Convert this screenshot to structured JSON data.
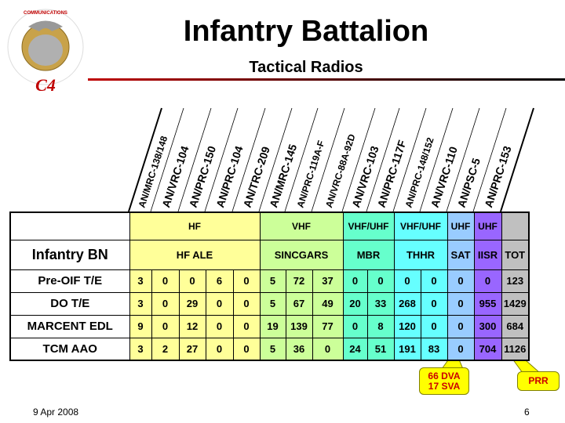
{
  "title": "Infantry Battalion",
  "subtitle": "Tactical Radios",
  "logo": {
    "text": "COMMAND, CONTROL, COMMUNICATIONS AND COMPUTERS - Headquarters, U.S. Marine Corps, Washington, D.C. - C4"
  },
  "radios": [
    "AN/MRC-138/148",
    "AN/VRC-104",
    "AN/PRC-150",
    "AN/PRC-104",
    "AN/TRC-209",
    "AN/MRC-145",
    "AN/PRC-119A-F",
    "AN/VRC-88A-92D",
    "AN/VRC-103",
    "AN/PRC-117F",
    "AN/PRC-148/152",
    "AN/VRC-110",
    "AN/PSC-5",
    "AN/PRC-153"
  ],
  "bands": {
    "hf": "HF",
    "vhf": "VHF",
    "mbr": "VHF/UHF",
    "thhr": "VHF/UHF",
    "sat": "UHF",
    "iisr": "UHF"
  },
  "groups": {
    "label": "Infantry BN",
    "hf": "HF ALE",
    "vhf": "SINCGARS",
    "mbr": "MBR",
    "thhr": "THHR",
    "sat": "SAT",
    "iisr": "IISR",
    "tot": "TOT"
  },
  "rows": [
    {
      "label": "Pre-OIF T/E",
      "values": [
        "3",
        "0",
        "0",
        "6",
        "0",
        "5",
        "72",
        "37",
        "0",
        "0",
        "0",
        "0",
        "0",
        "0",
        "123"
      ]
    },
    {
      "label": "DO T/E",
      "values": [
        "3",
        "0",
        "29",
        "0",
        "0",
        "5",
        "67",
        "49",
        "20",
        "33",
        "268",
        "0",
        "0",
        "955",
        "1429"
      ]
    },
    {
      "label": "MARCENT EDL",
      "values": [
        "9",
        "0",
        "12",
        "0",
        "0",
        "19",
        "139",
        "77",
        "0",
        "8",
        "120",
        "0",
        "0",
        "300",
        "684"
      ]
    },
    {
      "label": "TCM AAO",
      "values": [
        "3",
        "2",
        "27",
        "0",
        "0",
        "5",
        "36",
        "0",
        "24",
        "51",
        "191",
        "83",
        "0",
        "704",
        "1126"
      ]
    }
  ],
  "callouts": {
    "dva": "66 DVA",
    "sva": "17 SVA",
    "prr": "PRR"
  },
  "footer": {
    "date": "9 Apr 2008",
    "page": "6"
  },
  "colors": {
    "hf": "#ffff99",
    "vhf": "#ccff99",
    "mbr": "#66ffcc",
    "thhr": "#66ffff",
    "sat": "#99ccff",
    "iisr": "#9966ff",
    "tot": "#c0c0c0",
    "callout": "#ffff00",
    "callout_text": "#cc0000"
  }
}
